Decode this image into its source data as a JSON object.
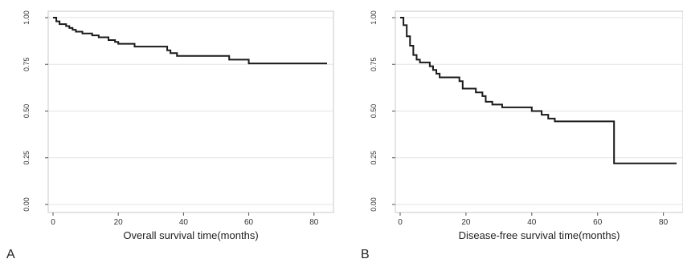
{
  "chart_data": [
    {
      "panel_label": "A",
      "type": "line",
      "step": true,
      "xlabel": "Overall survival time(months)",
      "ylabel": "",
      "xlim": [
        0,
        84
      ],
      "ylim": [
        0,
        1.0
      ],
      "xticks": [
        "0",
        "20",
        "40",
        "60",
        "80"
      ],
      "yticks": [
        "0.00",
        "0.25",
        "0.50",
        "0.75",
        "1.00"
      ],
      "grid": "horizontal",
      "series": [
        {
          "x": [
            0,
            1,
            2,
            4,
            5,
            6,
            7,
            9,
            12,
            14,
            17,
            19,
            20,
            25,
            35,
            36,
            38,
            54,
            60,
            84
          ],
          "y": [
            1.0,
            0.98,
            0.965,
            0.955,
            0.945,
            0.935,
            0.925,
            0.915,
            0.905,
            0.895,
            0.88,
            0.87,
            0.86,
            0.845,
            0.825,
            0.81,
            0.795,
            0.775,
            0.755,
            0.755
          ]
        }
      ]
    },
    {
      "panel_label": "B",
      "type": "line",
      "step": true,
      "xlabel": "Disease-free survival time(months)",
      "ylabel": "",
      "xlim": [
        0,
        84
      ],
      "ylim": [
        0,
        1.0
      ],
      "xticks": [
        "0",
        "20",
        "40",
        "60",
        "80"
      ],
      "yticks": [
        "0.00",
        "0.25",
        "0.50",
        "0.75",
        "1.00"
      ],
      "grid": "horizontal",
      "series": [
        {
          "x": [
            0,
            1,
            2,
            3,
            4,
            5,
            6,
            9,
            10,
            11,
            12,
            18,
            19,
            23,
            25,
            26,
            28,
            31,
            40,
            43,
            45,
            47,
            65,
            84
          ],
          "y": [
            1.0,
            0.96,
            0.9,
            0.85,
            0.8,
            0.775,
            0.76,
            0.74,
            0.72,
            0.7,
            0.68,
            0.66,
            0.62,
            0.6,
            0.58,
            0.55,
            0.535,
            0.52,
            0.5,
            0.48,
            0.46,
            0.445,
            0.22,
            0.22
          ]
        }
      ]
    }
  ]
}
